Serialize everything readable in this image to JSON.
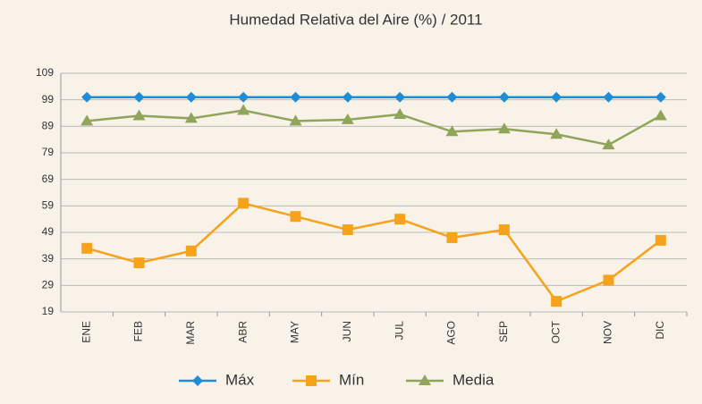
{
  "chart_data": {
    "type": "line",
    "title": "Humedad Relativa del Aire  (%) / 2011",
    "categories": [
      "ENE",
      "FEB",
      "MAR",
      "ABR",
      "MAY",
      "JUN",
      "JUL",
      "AGO",
      "SEP",
      "OCT",
      "NOV",
      "DIC"
    ],
    "series": [
      {
        "name": "Máx",
        "color": "#1f8dd6",
        "marker": "diamond",
        "values": [
          100,
          100,
          100,
          100,
          100,
          100,
          100,
          100,
          100,
          100,
          100,
          100
        ]
      },
      {
        "name": "Mín",
        "color": "#f7a21b",
        "marker": "square",
        "values": [
          43,
          37.5,
          42,
          60,
          55,
          50,
          54,
          47,
          50,
          23,
          31,
          46
        ]
      },
      {
        "name": "Media",
        "color": "#8fa65a",
        "marker": "triangle",
        "values": [
          91,
          93,
          92,
          95,
          91,
          91.5,
          93.5,
          87,
          88,
          86,
          82,
          93
        ]
      }
    ],
    "ylim": [
      19,
      109
    ],
    "yticks": [
      19,
      29,
      39,
      49,
      59,
      69,
      79,
      89,
      99,
      109
    ],
    "grid": true,
    "legend": "bottom"
  }
}
